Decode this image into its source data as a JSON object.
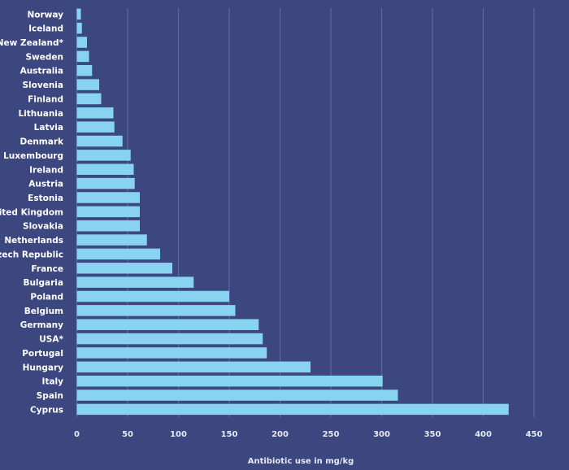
{
  "chart_data": {
    "type": "bar",
    "orientation": "horizontal",
    "title": "",
    "xlabel": "Antibiotic use in mg/kg",
    "ylabel": "",
    "xlim": [
      0,
      450
    ],
    "xticks": [
      0,
      50,
      100,
      150,
      200,
      250,
      300,
      350,
      400,
      450
    ],
    "grid": true,
    "colors": {
      "background": "#3c4780",
      "bar": "#87d3f0",
      "grid": "#5a67a0"
    },
    "categories": [
      "Norway",
      "Iceland",
      "New Zealand*",
      "Sweden",
      "Australia",
      "Slovenia",
      "Finland",
      "Lithuania",
      "Latvia",
      "Denmark",
      "Luxembourg",
      "Ireland",
      "Austria",
      "Estonia",
      "United Kingdom",
      "Slovakia",
      "Netherlands",
      "Czech Republic",
      "France",
      "Bulgaria",
      "Poland",
      "Belgium",
      "Germany",
      "USA*",
      "Portugal",
      "Hungary",
      "Italy",
      "Spain",
      "Cyprus"
    ],
    "values": [
      4,
      5,
      10,
      12,
      15,
      22,
      24,
      36,
      37,
      45,
      53,
      56,
      57,
      62,
      62,
      62,
      69,
      82,
      94,
      115,
      150,
      156,
      179,
      183,
      187,
      230,
      301,
      316,
      425
    ]
  }
}
